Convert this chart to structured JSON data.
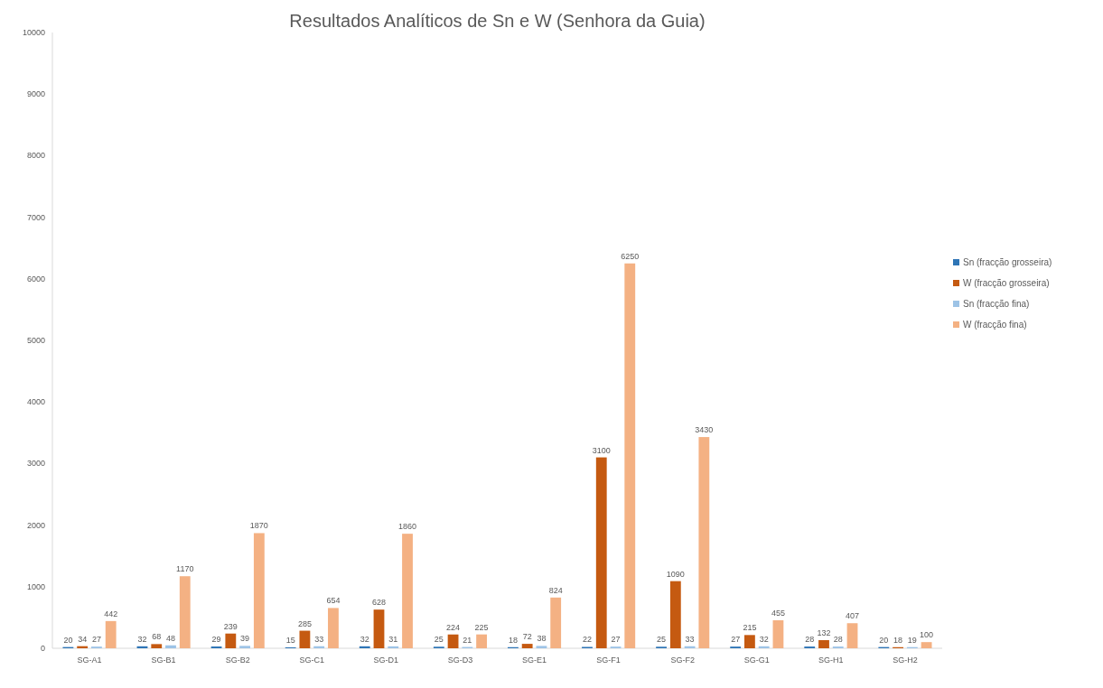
{
  "chart_data": {
    "type": "bar",
    "title": "Resultados Analíticos de Sn e W (Senhora da Guia)",
    "categories": [
      "SG-A1",
      "SG-B1",
      "SG-B2",
      "SG-C1",
      "SG-D1",
      "SG-D3",
      "SG-E1",
      "SG-F1",
      "SG-F2",
      "SG-G1",
      "SG-H1",
      "SG-H2"
    ],
    "series": [
      {
        "name": "Sn (fracção grosseira)",
        "color": "#2e75b6",
        "values": [
          20,
          32,
          29,
          15,
          32,
          25,
          18,
          22,
          25,
          27,
          28,
          20
        ]
      },
      {
        "name": "W (fracção grosseira)",
        "color": "#c55a11",
        "values": [
          34,
          68,
          239,
          285,
          628,
          224,
          72,
          3100,
          1090,
          215,
          132,
          18
        ]
      },
      {
        "name": "Sn (fracção fina)",
        "color": "#9dc3e6",
        "values": [
          27,
          48,
          39,
          33,
          31,
          21,
          38,
          27,
          33,
          32,
          28,
          19
        ]
      },
      {
        "name": "W (fracção fina)",
        "color": "#f4b183",
        "values": [
          442,
          1170,
          1870,
          654,
          1860,
          225,
          824,
          6250,
          3430,
          455,
          407,
          100
        ]
      }
    ],
    "ylim": [
      0,
      10000
    ],
    "yticks": [
      0,
      1000,
      2000,
      3000,
      4000,
      5000,
      6000,
      7000,
      8000,
      9000,
      10000
    ],
    "data_labels": true,
    "legend": "right",
    "grid": false
  }
}
